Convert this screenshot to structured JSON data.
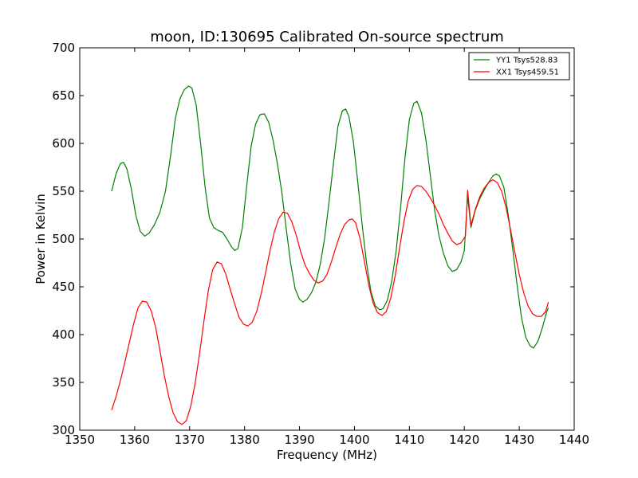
{
  "chart_data": {
    "type": "line",
    "title": "moon, ID:130695 Calibrated On-source spectrum",
    "xlabel": "Frequency (MHz)",
    "ylabel": "Power in Kelvin",
    "xlim": [
      1350,
      1440
    ],
    "ylim": [
      300,
      700
    ],
    "xticks": [
      1350,
      1360,
      1370,
      1380,
      1390,
      1400,
      1410,
      1420,
      1430,
      1440
    ],
    "yticks": [
      300,
      350,
      400,
      450,
      500,
      550,
      600,
      650,
      700
    ],
    "grid": false,
    "legend_position": "top-right",
    "series": [
      {
        "name": "YY1 Tsys528.83",
        "color": "#008000",
        "points": [
          [
            1355.8,
            550
          ],
          [
            1356.6,
            568
          ],
          [
            1357.4,
            579
          ],
          [
            1358.0,
            580
          ],
          [
            1358.6,
            573
          ],
          [
            1359.4,
            552
          ],
          [
            1360.2,
            525
          ],
          [
            1361.0,
            508
          ],
          [
            1361.8,
            503
          ],
          [
            1362.6,
            506
          ],
          [
            1363.6,
            515
          ],
          [
            1364.6,
            528
          ],
          [
            1365.6,
            550
          ],
          [
            1366.6,
            590
          ],
          [
            1367.4,
            626
          ],
          [
            1368.2,
            646
          ],
          [
            1369.0,
            656
          ],
          [
            1369.8,
            660
          ],
          [
            1370.4,
            658
          ],
          [
            1371.2,
            640
          ],
          [
            1372.0,
            600
          ],
          [
            1372.8,
            555
          ],
          [
            1373.6,
            522
          ],
          [
            1374.4,
            512
          ],
          [
            1375.2,
            509
          ],
          [
            1376.0,
            507
          ],
          [
            1376.8,
            500
          ],
          [
            1377.6,
            492
          ],
          [
            1378.2,
            488
          ],
          [
            1378.8,
            490
          ],
          [
            1379.6,
            512
          ],
          [
            1380.4,
            556
          ],
          [
            1381.2,
            597
          ],
          [
            1382.0,
            620
          ],
          [
            1382.8,
            630
          ],
          [
            1383.6,
            631
          ],
          [
            1384.4,
            622
          ],
          [
            1385.2,
            603
          ],
          [
            1386.0,
            578
          ],
          [
            1386.8,
            548
          ],
          [
            1387.6,
            510
          ],
          [
            1388.4,
            474
          ],
          [
            1389.2,
            448
          ],
          [
            1390.0,
            437
          ],
          [
            1390.6,
            434
          ],
          [
            1391.4,
            437
          ],
          [
            1392.2,
            444
          ],
          [
            1393.0,
            455
          ],
          [
            1393.8,
            474
          ],
          [
            1394.6,
            502
          ],
          [
            1395.4,
            540
          ],
          [
            1396.2,
            580
          ],
          [
            1397.0,
            618
          ],
          [
            1397.8,
            634
          ],
          [
            1398.4,
            636
          ],
          [
            1399.0,
            628
          ],
          [
            1399.8,
            602
          ],
          [
            1400.6,
            560
          ],
          [
            1401.4,
            515
          ],
          [
            1402.2,
            475
          ],
          [
            1403.0,
            445
          ],
          [
            1403.8,
            430
          ],
          [
            1404.6,
            426
          ],
          [
            1405.2,
            427
          ],
          [
            1406.0,
            436
          ],
          [
            1406.8,
            456
          ],
          [
            1407.6,
            488
          ],
          [
            1408.4,
            533
          ],
          [
            1409.2,
            585
          ],
          [
            1410.0,
            625
          ],
          [
            1410.8,
            642
          ],
          [
            1411.4,
            644
          ],
          [
            1412.2,
            632
          ],
          [
            1413.0,
            604
          ],
          [
            1413.8,
            567
          ],
          [
            1414.6,
            530
          ],
          [
            1415.4,
            503
          ],
          [
            1416.2,
            485
          ],
          [
            1417.0,
            472
          ],
          [
            1417.8,
            466
          ],
          [
            1418.6,
            468
          ],
          [
            1419.4,
            476
          ],
          [
            1420.0,
            488
          ],
          [
            1420.6,
            545
          ],
          [
            1421.2,
            512
          ],
          [
            1422.0,
            530
          ],
          [
            1422.8,
            542
          ],
          [
            1423.6,
            551
          ],
          [
            1424.4,
            559
          ],
          [
            1425.2,
            566
          ],
          [
            1425.8,
            568
          ],
          [
            1426.4,
            566
          ],
          [
            1427.2,
            554
          ],
          [
            1428.0,
            525
          ],
          [
            1428.8,
            490
          ],
          [
            1429.6,
            452
          ],
          [
            1430.4,
            418
          ],
          [
            1431.2,
            397
          ],
          [
            1432.0,
            388
          ],
          [
            1432.6,
            386
          ],
          [
            1433.4,
            393
          ],
          [
            1434.2,
            407
          ],
          [
            1435.0,
            424
          ],
          [
            1435.3,
            428
          ]
        ]
      },
      {
        "name": "XX1 Tsys459.51",
        "color": "#ff0000",
        "points": [
          [
            1355.8,
            321
          ],
          [
            1356.6,
            335
          ],
          [
            1357.4,
            352
          ],
          [
            1358.2,
            371
          ],
          [
            1359.0,
            391
          ],
          [
            1359.8,
            411
          ],
          [
            1360.6,
            428
          ],
          [
            1361.4,
            435
          ],
          [
            1362.2,
            434
          ],
          [
            1363.0,
            425
          ],
          [
            1363.8,
            408
          ],
          [
            1364.6,
            383
          ],
          [
            1365.4,
            357
          ],
          [
            1366.2,
            335
          ],
          [
            1367.0,
            318
          ],
          [
            1367.8,
            309
          ],
          [
            1368.6,
            306
          ],
          [
            1369.4,
            310
          ],
          [
            1370.2,
            325
          ],
          [
            1371.0,
            349
          ],
          [
            1371.8,
            380
          ],
          [
            1372.6,
            414
          ],
          [
            1373.4,
            446
          ],
          [
            1374.2,
            468
          ],
          [
            1375.0,
            476
          ],
          [
            1375.8,
            474
          ],
          [
            1376.6,
            463
          ],
          [
            1377.4,
            447
          ],
          [
            1378.2,
            432
          ],
          [
            1379.0,
            418
          ],
          [
            1379.8,
            411
          ],
          [
            1380.6,
            409
          ],
          [
            1381.4,
            413
          ],
          [
            1382.2,
            424
          ],
          [
            1383.0,
            442
          ],
          [
            1383.8,
            464
          ],
          [
            1384.6,
            487
          ],
          [
            1385.4,
            507
          ],
          [
            1386.2,
            521
          ],
          [
            1387.0,
            528
          ],
          [
            1387.8,
            527
          ],
          [
            1388.6,
            518
          ],
          [
            1389.4,
            504
          ],
          [
            1390.2,
            487
          ],
          [
            1391.0,
            473
          ],
          [
            1391.8,
            464
          ],
          [
            1392.6,
            457
          ],
          [
            1393.4,
            454
          ],
          [
            1394.2,
            456
          ],
          [
            1395.0,
            463
          ],
          [
            1395.8,
            476
          ],
          [
            1396.6,
            491
          ],
          [
            1397.4,
            505
          ],
          [
            1398.2,
            515
          ],
          [
            1399.0,
            520
          ],
          [
            1399.6,
            521
          ],
          [
            1400.2,
            517
          ],
          [
            1401.0,
            501
          ],
          [
            1401.8,
            477
          ],
          [
            1402.6,
            452
          ],
          [
            1403.4,
            433
          ],
          [
            1404.2,
            423
          ],
          [
            1405.0,
            420
          ],
          [
            1405.8,
            424
          ],
          [
            1406.6,
            438
          ],
          [
            1407.4,
            461
          ],
          [
            1408.2,
            490
          ],
          [
            1409.0,
            518
          ],
          [
            1409.8,
            540
          ],
          [
            1410.6,
            552
          ],
          [
            1411.4,
            556
          ],
          [
            1412.2,
            555
          ],
          [
            1413.0,
            550
          ],
          [
            1413.8,
            543
          ],
          [
            1414.6,
            535
          ],
          [
            1415.4,
            526
          ],
          [
            1416.2,
            515
          ],
          [
            1417.0,
            506
          ],
          [
            1417.8,
            498
          ],
          [
            1418.6,
            494
          ],
          [
            1419.4,
            496
          ],
          [
            1420.2,
            503
          ],
          [
            1420.6,
            551
          ],
          [
            1421.2,
            514
          ],
          [
            1422.0,
            531
          ],
          [
            1422.8,
            544
          ],
          [
            1423.6,
            553
          ],
          [
            1424.4,
            559
          ],
          [
            1425.2,
            562
          ],
          [
            1426.0,
            559
          ],
          [
            1426.8,
            550
          ],
          [
            1427.6,
            533
          ],
          [
            1428.4,
            510
          ],
          [
            1429.2,
            486
          ],
          [
            1430.0,
            463
          ],
          [
            1430.8,
            444
          ],
          [
            1431.6,
            430
          ],
          [
            1432.4,
            422
          ],
          [
            1433.2,
            419
          ],
          [
            1434.0,
            419
          ],
          [
            1434.8,
            424
          ],
          [
            1435.3,
            434
          ]
        ]
      }
    ]
  }
}
